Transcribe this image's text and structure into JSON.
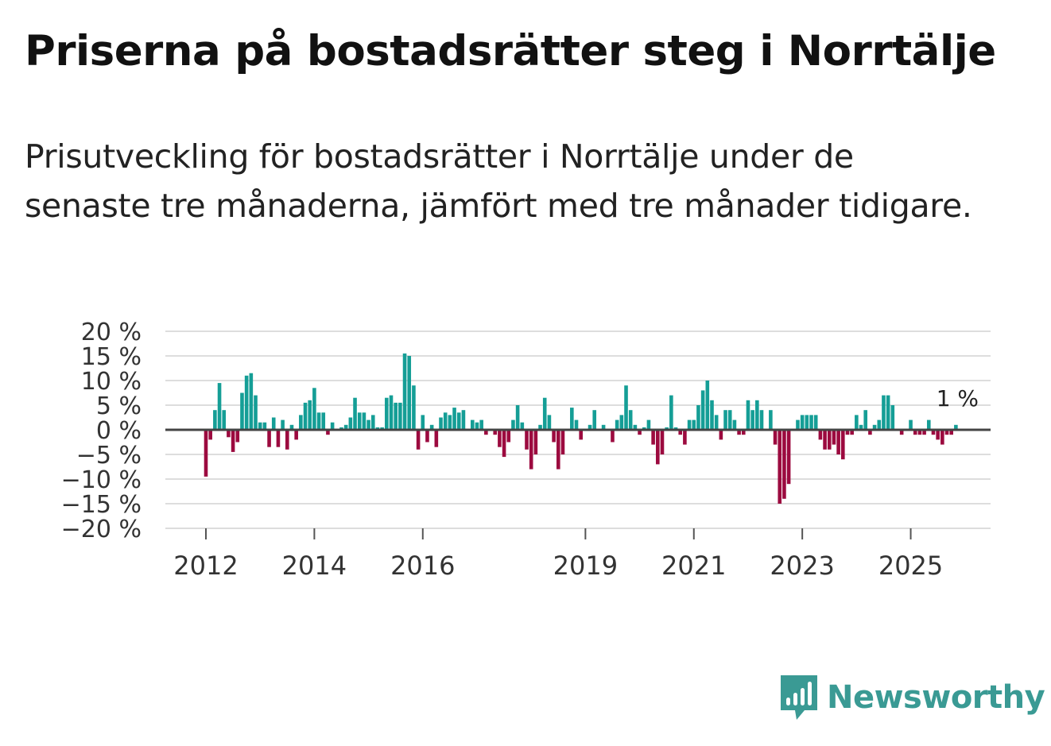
{
  "title": "Priserna på bostadsrätter steg i Norrtälje",
  "subtitle": "Prisutveckling för bostadsrätter i Norrtälje under de senaste tre månaderna, jämfört med tre månader tidigare.",
  "brand": {
    "name": "Newsworthy",
    "icon": "newsworthy-logo-icon",
    "color": "#3a9a94"
  },
  "colors": {
    "positive": "#159e96",
    "negative": "#9c0a3f",
    "grid": "#dddddd",
    "zero": "#444444"
  },
  "chart_data": {
    "type": "bar",
    "title": "Priserna på bostadsrätter steg i Norrtälje",
    "xlabel": "",
    "ylabel": "",
    "ylim": [
      -20,
      20
    ],
    "grid": true,
    "start": "2011-12",
    "frequency": "monthly",
    "y_ticks": [
      20,
      15,
      10,
      5,
      0,
      -5,
      -10,
      -15,
      -20
    ],
    "y_tick_labels": [
      "20 %",
      "15 %",
      "10 %",
      "5 %",
      "0 %",
      "−5 %",
      "−10 %",
      "−15 %",
      "−20 %"
    ],
    "x_ticks": [
      {
        "index": 1,
        "label": "2012"
      },
      {
        "index": 25,
        "label": "2014"
      },
      {
        "index": 49,
        "label": "2016"
      },
      {
        "index": 85,
        "label": "2019"
      },
      {
        "index": 109,
        "label": "2021"
      },
      {
        "index": 133,
        "label": "2023"
      },
      {
        "index": 157,
        "label": "2025"
      }
    ],
    "last_value_label": "1 %",
    "values": [
      -9.5,
      -2,
      4,
      9.5,
      4,
      -1.5,
      -4.5,
      -2.5,
      7.5,
      11,
      11.5,
      7,
      1.5,
      1.5,
      -3.5,
      2.5,
      -3.5,
      2,
      -4,
      1,
      -2,
      3,
      5.5,
      6,
      8.5,
      3.5,
      3.5,
      -1,
      1.5,
      0,
      0.5,
      1,
      2.5,
      6.5,
      3.5,
      3.5,
      2,
      3,
      0.5,
      0.5,
      6.5,
      7,
      5.5,
      5.5,
      15.5,
      15,
      9,
      -4,
      3,
      -2.5,
      1,
      -3.5,
      2.5,
      3.5,
      3,
      4.5,
      3.5,
      4,
      0,
      2,
      1.5,
      2,
      -1,
      0,
      -1,
      -3.5,
      -5.5,
      -2.5,
      2,
      5,
      1.5,
      -4,
      -8,
      -5,
      1,
      6.5,
      3,
      -2.5,
      -8,
      -5,
      0,
      4.5,
      2,
      -2,
      0,
      1,
      4,
      0,
      1,
      0,
      -2.5,
      2,
      3,
      9,
      4,
      1,
      -1,
      0.5,
      2,
      -3,
      -7,
      -5,
      0.5,
      7,
      0.5,
      -1,
      -3,
      2,
      2,
      5,
      8,
      10,
      6,
      3,
      -2,
      4,
      4,
      2,
      -1,
      -1,
      6,
      4,
      6,
      4,
      0,
      4,
      -3,
      -15,
      -14,
      -11,
      0,
      2,
      3,
      3,
      3,
      3,
      -2,
      -4,
      -4,
      -3,
      -5,
      -6,
      -1,
      -1,
      3,
      1,
      4,
      -1,
      1,
      2,
      7,
      7,
      5,
      0,
      -1,
      0,
      2,
      -1,
      -1,
      -1,
      2,
      -1,
      -2,
      -3,
      -1,
      -1,
      1
    ]
  }
}
